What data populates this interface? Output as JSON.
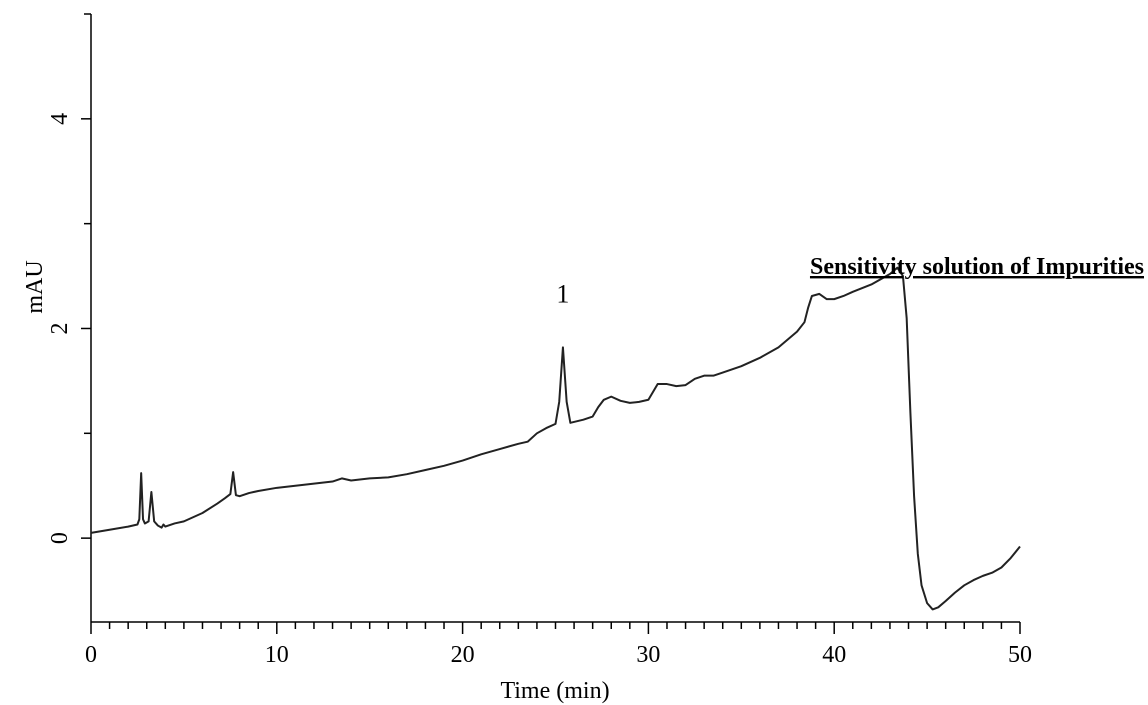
{
  "chart_data": {
    "type": "line",
    "title": "Sensitivity solution of Impurities",
    "xlabel": "Time (min)",
    "ylabel": "mAU",
    "xlim": [
      0,
      50
    ],
    "ylim": [
      -0.8,
      5.0
    ],
    "x_ticks": [
      "0",
      "10",
      "20",
      "30",
      "40",
      "50"
    ],
    "y_ticks": [
      "0",
      "2",
      "4"
    ],
    "grid": false,
    "peak_annotations": [
      {
        "label": "1",
        "x": 25.4,
        "y": 2.25
      }
    ],
    "series": [
      {
        "color": "#222222",
        "points": [
          [
            0.0,
            0.05
          ],
          [
            1.0,
            0.08
          ],
          [
            2.0,
            0.11
          ],
          [
            2.5,
            0.13
          ],
          [
            2.6,
            0.18
          ],
          [
            2.7,
            0.62
          ],
          [
            2.8,
            0.18
          ],
          [
            2.9,
            0.14
          ],
          [
            3.1,
            0.16
          ],
          [
            3.25,
            0.44
          ],
          [
            3.4,
            0.16
          ],
          [
            3.6,
            0.12
          ],
          [
            3.8,
            0.1
          ],
          [
            3.9,
            0.13
          ],
          [
            4.0,
            0.11
          ],
          [
            4.5,
            0.14
          ],
          [
            5.0,
            0.16
          ],
          [
            6.0,
            0.24
          ],
          [
            6.8,
            0.33
          ],
          [
            7.2,
            0.38
          ],
          [
            7.5,
            0.42
          ],
          [
            7.65,
            0.63
          ],
          [
            7.8,
            0.41
          ],
          [
            8.0,
            0.4
          ],
          [
            8.5,
            0.43
          ],
          [
            9.0,
            0.45
          ],
          [
            10.0,
            0.48
          ],
          [
            11.0,
            0.5
          ],
          [
            12.0,
            0.52
          ],
          [
            13.0,
            0.54
          ],
          [
            13.5,
            0.57
          ],
          [
            14.0,
            0.55
          ],
          [
            15.0,
            0.57
          ],
          [
            16.0,
            0.58
          ],
          [
            17.0,
            0.61
          ],
          [
            18.0,
            0.65
          ],
          [
            19.0,
            0.69
          ],
          [
            20.0,
            0.74
          ],
          [
            21.0,
            0.8
          ],
          [
            22.0,
            0.85
          ],
          [
            23.0,
            0.9
          ],
          [
            23.5,
            0.92
          ],
          [
            24.0,
            1.0
          ],
          [
            24.5,
            1.05
          ],
          [
            25.0,
            1.09
          ],
          [
            25.2,
            1.3
          ],
          [
            25.4,
            1.82
          ],
          [
            25.6,
            1.3
          ],
          [
            25.8,
            1.1
          ],
          [
            26.5,
            1.13
          ],
          [
            27.0,
            1.16
          ],
          [
            27.3,
            1.25
          ],
          [
            27.6,
            1.32
          ],
          [
            28.0,
            1.35
          ],
          [
            28.5,
            1.31
          ],
          [
            29.0,
            1.29
          ],
          [
            29.5,
            1.3
          ],
          [
            30.0,
            1.32
          ],
          [
            30.5,
            1.47
          ],
          [
            31.0,
            1.47
          ],
          [
            31.5,
            1.45
          ],
          [
            32.0,
            1.46
          ],
          [
            32.5,
            1.52
          ],
          [
            33.0,
            1.55
          ],
          [
            33.5,
            1.55
          ],
          [
            34.0,
            1.58
          ],
          [
            35.0,
            1.64
          ],
          [
            36.0,
            1.72
          ],
          [
            37.0,
            1.82
          ],
          [
            38.0,
            1.97
          ],
          [
            38.4,
            2.06
          ],
          [
            38.6,
            2.2
          ],
          [
            38.8,
            2.31
          ],
          [
            39.2,
            2.33
          ],
          [
            39.6,
            2.28
          ],
          [
            40.0,
            2.28
          ],
          [
            40.5,
            2.31
          ],
          [
            41.0,
            2.35
          ],
          [
            42.0,
            2.42
          ],
          [
            43.0,
            2.52
          ],
          [
            43.4,
            2.58
          ],
          [
            43.7,
            2.5
          ],
          [
            43.9,
            2.1
          ],
          [
            44.1,
            1.2
          ],
          [
            44.3,
            0.4
          ],
          [
            44.5,
            -0.15
          ],
          [
            44.7,
            -0.45
          ],
          [
            45.0,
            -0.62
          ],
          [
            45.3,
            -0.68
          ],
          [
            45.6,
            -0.66
          ],
          [
            46.0,
            -0.6
          ],
          [
            46.5,
            -0.52
          ],
          [
            47.0,
            -0.45
          ],
          [
            47.5,
            -0.4
          ],
          [
            48.0,
            -0.36
          ],
          [
            48.5,
            -0.33
          ],
          [
            49.0,
            -0.28
          ],
          [
            49.5,
            -0.19
          ],
          [
            50.0,
            -0.08
          ]
        ]
      }
    ]
  }
}
